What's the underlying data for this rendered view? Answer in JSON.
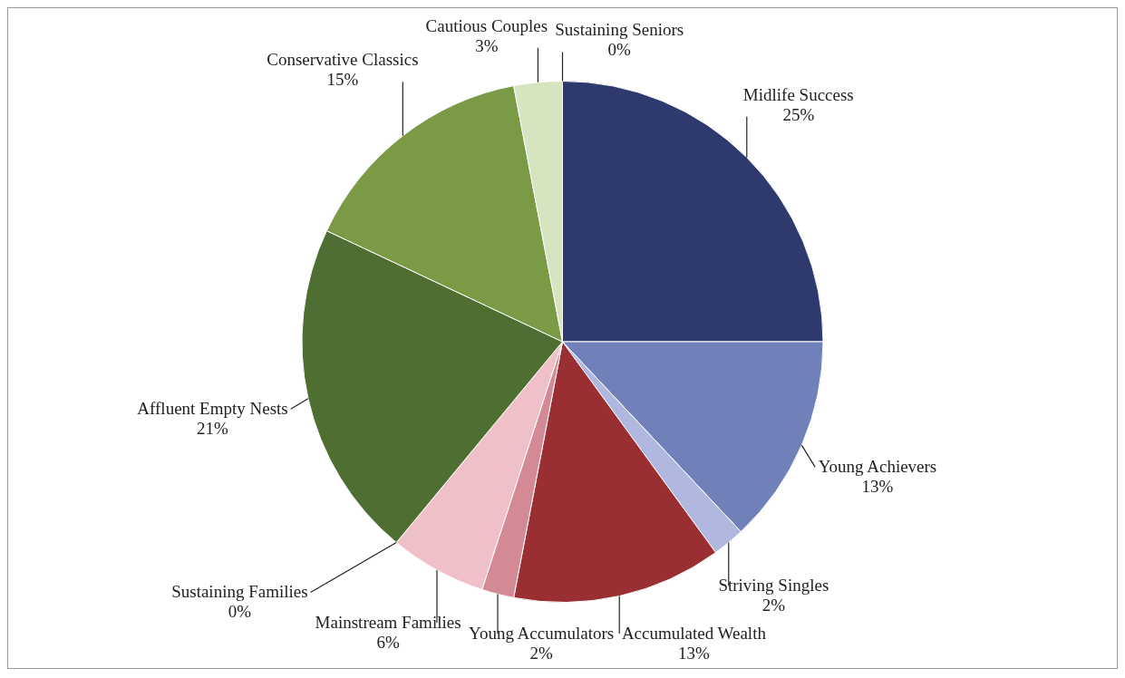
{
  "chart_data": {
    "type": "pie",
    "categories": [
      "Midlife Success",
      "Young Achievers",
      "Striving Singles",
      "Accumulated Wealth",
      "Young Accumulators",
      "Mainstream Families",
      "Sustaining Families",
      "Affluent Empty Nests",
      "Conservative Classics",
      "Cautious Couples",
      "Sustaining Seniors"
    ],
    "values": [
      25,
      13,
      2,
      13,
      2,
      6,
      0,
      21,
      15,
      3,
      0
    ],
    "value_labels": [
      "25%",
      "13%",
      "2%",
      "13%",
      "2%",
      "6%",
      "0%",
      "21%",
      "15%",
      "3%",
      "0%"
    ],
    "colors": [
      "#2e3a6e",
      "#7080b8",
      "#b0b8e0",
      "#9a2f33",
      "#d48a95",
      "#f0c0c8",
      "#f8e0e4",
      "#4e6e32",
      "#7a9a45",
      "#d6e4c0",
      "#eef4e6"
    ],
    "legend": false
  }
}
